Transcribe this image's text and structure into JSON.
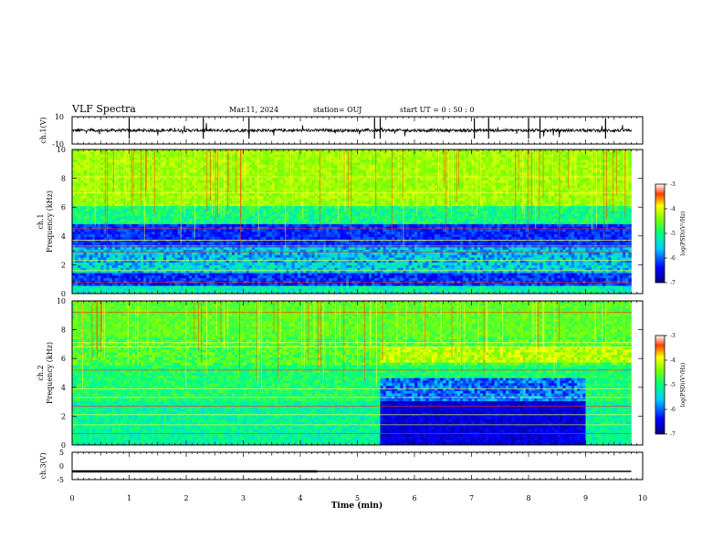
{
  "header": {
    "title": "VLF Spectra",
    "date": "Mar.11, 2024",
    "station": "station= OUJ",
    "start": "start  UT =   0 : 50 : 0"
  },
  "chart_data": [
    {
      "type": "line",
      "name": "ch1-voltage",
      "ylabel": "ch.1(V)",
      "ylim": [
        -10,
        10
      ],
      "yticks": [
        "10",
        "-10"
      ],
      "xlim": [
        0,
        10
      ],
      "series": [
        {
          "x": [
            0,
            9.8
          ],
          "y": [
            0,
            0
          ]
        }
      ]
    },
    {
      "type": "heatmap",
      "name": "ch1-spectrogram",
      "ylabel": "ch.1\nFrequency (kHz)",
      "ylim": [
        0,
        10
      ],
      "yticks": [
        "0",
        "2",
        "4",
        "6",
        "8",
        "10"
      ],
      "xlim": [
        0,
        10
      ],
      "colorbar": {
        "label": "log(PSD)(V²/Hz)",
        "range": [
          -7,
          -3
        ],
        "ticks": [
          "-3",
          "-4",
          "-5",
          "-6",
          "-7"
        ]
      }
    },
    {
      "type": "heatmap",
      "name": "ch2-spectrogram",
      "ylabel": "ch.2\nFrequency (kHz)",
      "ylim": [
        0,
        10
      ],
      "yticks": [
        "0",
        "2",
        "4",
        "6",
        "8",
        "10"
      ],
      "xlim": [
        0,
        10
      ],
      "colorbar": {
        "label": "log(PSD)(V²/Hz)",
        "range": [
          -7,
          -3
        ],
        "ticks": [
          "-3",
          "-4",
          "-5",
          "-6",
          "-7"
        ]
      }
    },
    {
      "type": "line",
      "name": "ch3-voltage",
      "ylabel": "ch.3(V)",
      "ylim": [
        -5,
        5
      ],
      "yticks": [
        "5",
        "0",
        "-5"
      ],
      "xlim": [
        0,
        10
      ],
      "xlabel": "Time  (min)",
      "xticks": [
        "0",
        "1",
        "2",
        "3",
        "4",
        "5",
        "6",
        "7",
        "8",
        "9",
        "10"
      ],
      "series": [
        {
          "x": [
            0,
            4.3,
            9.8
          ],
          "y": [
            -2,
            -2,
            -2
          ]
        }
      ]
    }
  ]
}
